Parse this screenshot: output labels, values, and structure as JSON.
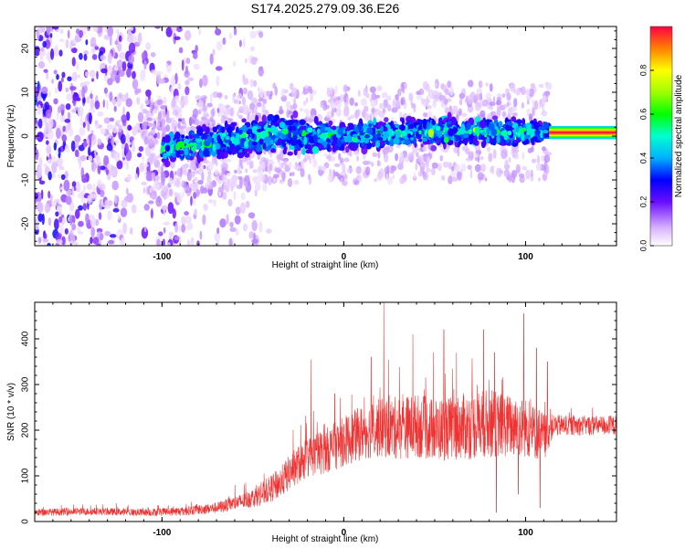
{
  "title": "S174.2025.279.09.36.E26",
  "colors": {
    "snr_line": "#ee3333",
    "point_color": "#8a2be2",
    "axis": "#000000"
  },
  "chart_data": [
    {
      "type": "heatmap",
      "name": "spectrogram",
      "xlabel": "Height of straight line (km)",
      "ylabel": "Frequency (Hz)",
      "xlim": [
        -170,
        150
      ],
      "ylim": [
        -25,
        25
      ],
      "x_ticks": [
        {
          "value": -100,
          "label": "-100"
        },
        {
          "value": 0,
          "label": "0"
        },
        {
          "value": 100,
          "label": "100"
        }
      ],
      "y_ticks": [
        {
          "value": -20,
          "label": "-20"
        },
        {
          "value": -10,
          "label": "-10"
        },
        {
          "value": 0,
          "label": "0"
        },
        {
          "value": 10,
          "label": "10"
        },
        {
          "value": 20,
          "label": "20"
        }
      ],
      "colorbar": {
        "label": "Normalized spectral amplitude",
        "range": [
          0,
          1
        ],
        "ticks": [
          {
            "value": 0.0,
            "label": "0.0"
          },
          {
            "value": 0.2,
            "label": "0.2"
          },
          {
            "value": 0.4,
            "label": "0.4"
          },
          {
            "value": 0.6,
            "label": "0.6"
          },
          {
            "value": 0.8,
            "label": "0.8"
          }
        ],
        "stops": [
          {
            "value": 0.0,
            "color": "#ffffff"
          },
          {
            "value": 0.08,
            "color": "#d9b3ff"
          },
          {
            "value": 0.2,
            "color": "#6a0dff"
          },
          {
            "value": 0.3,
            "color": "#0000ff"
          },
          {
            "value": 0.4,
            "color": "#00b0ff"
          },
          {
            "value": 0.5,
            "color": "#00ffd0"
          },
          {
            "value": 0.6,
            "color": "#00ff00"
          },
          {
            "value": 0.7,
            "color": "#a0ff00"
          },
          {
            "value": 0.8,
            "color": "#ffff00"
          },
          {
            "value": 0.9,
            "color": "#ff8000"
          },
          {
            "value": 1.0,
            "color": "#ff0044"
          }
        ]
      },
      "ridge": {
        "description_note": "energy concentrated near 0-1 Hz",
        "x_range": [
          -100,
          113
        ],
        "center_freq": [
          [
            -100,
            -3
          ],
          [
            -60,
            -1
          ],
          [
            -40,
            0.5
          ],
          [
            0,
            0
          ],
          [
            50,
            1
          ],
          [
            113,
            1
          ]
        ],
        "half_width": [
          [
            -100,
            4
          ],
          [
            -40,
            6
          ],
          [
            0,
            4
          ],
          [
            100,
            4
          ],
          [
            113,
            2
          ]
        ],
        "scatter_x_range": [
          -170,
          -40
        ],
        "constant_tone": {
          "x_range": [
            113,
            150
          ],
          "freq": 0.8,
          "amplitude": 0.98
        }
      }
    },
    {
      "type": "line",
      "name": "snr",
      "xlabel": "Height of straight line (km)",
      "ylabel": "SNR (10 * v/v)",
      "xlim": [
        -170,
        150
      ],
      "ylim": [
        0,
        480
      ],
      "x_ticks": [
        {
          "value": -100,
          "label": "-100"
        },
        {
          "value": 0,
          "label": "0"
        },
        {
          "value": 100,
          "label": "100"
        }
      ],
      "y_ticks": [
        {
          "value": 0,
          "label": "0"
        },
        {
          "value": 100,
          "label": "100"
        },
        {
          "value": 200,
          "label": "200"
        },
        {
          "value": 300,
          "label": "300"
        },
        {
          "value": 400,
          "label": "400"
        }
      ],
      "series": [
        {
          "name": "SNR",
          "x": [
            -170,
            -140,
            -110,
            -90,
            -70,
            -55,
            -45,
            -35,
            -28,
            -20,
            -10,
            0,
            10,
            20,
            30,
            40,
            50,
            60,
            70,
            80,
            90,
            100,
            110,
            115,
            125,
            135,
            150
          ],
          "y": [
            20,
            22,
            20,
            22,
            30,
            45,
            60,
            85,
            115,
            140,
            155,
            175,
            195,
            205,
            205,
            210,
            200,
            205,
            210,
            215,
            210,
            205,
            185,
            210,
            210,
            210,
            210
          ],
          "spread": [
            8,
            8,
            8,
            10,
            12,
            18,
            25,
            35,
            40,
            45,
            50,
            55,
            60,
            65,
            70,
            70,
            70,
            70,
            75,
            75,
            70,
            65,
            55,
            25,
            22,
            22,
            22
          ],
          "spikes": [
            {
              "x": -18,
              "y": 355
            },
            {
              "x": -5,
              "y": 280
            },
            {
              "x": 15,
              "y": 360
            },
            {
              "x": 22,
              "y": 480
            },
            {
              "x": 38,
              "y": 410
            },
            {
              "x": 55,
              "y": 420
            },
            {
              "x": 62,
              "y": 370
            },
            {
              "x": 77,
              "y": 420
            },
            {
              "x": 83,
              "y": 370
            },
            {
              "x": 99,
              "y": 455
            },
            {
              "x": 106,
              "y": 380
            },
            {
              "x": 112,
              "y": 350
            }
          ],
          "dips": [
            {
              "x": 84,
              "y": 20
            },
            {
              "x": 96,
              "y": 60
            },
            {
              "x": 108,
              "y": 30
            }
          ]
        }
      ]
    }
  ]
}
